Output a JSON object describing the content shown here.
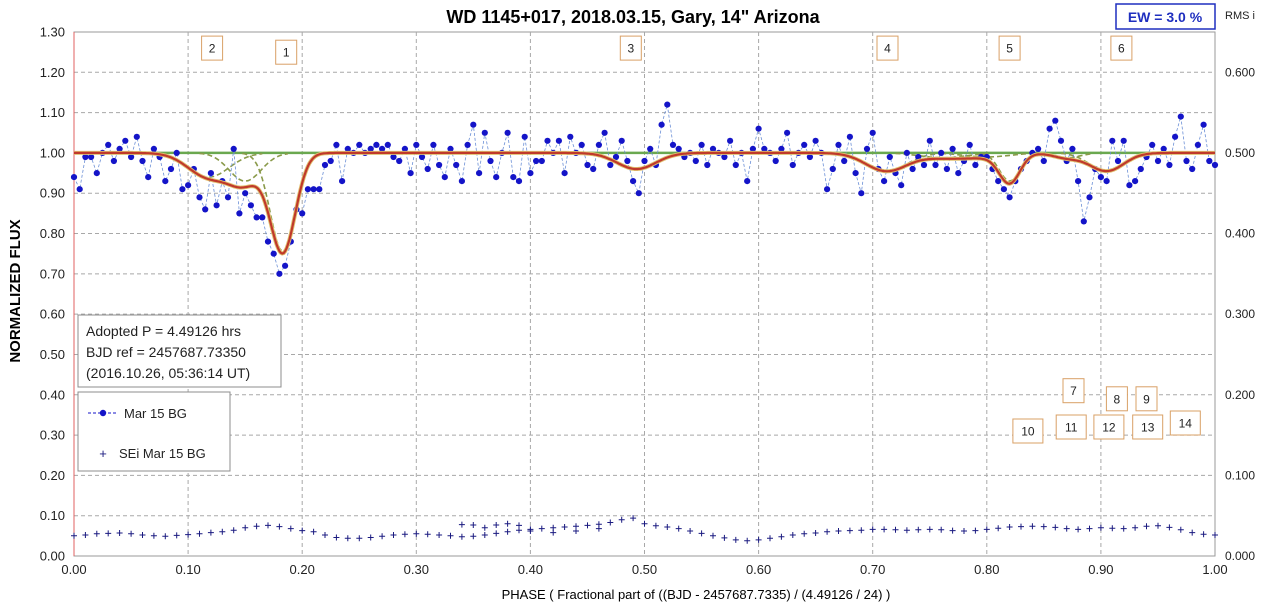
{
  "chart_data": {
    "type": "scatter",
    "title": "WD 1145+017, 2018.03.15, Gary,  14\" Arizona",
    "xlabel": "PHASE  ( Fractional part of ((BJD - 2457687.7335)  / (4.49126  / 24) )",
    "ylabel": "NORMALIZED  FLUX",
    "xlim": [
      0.0,
      1.0
    ],
    "ylim": [
      0.0,
      1.3
    ],
    "y2lim": [
      0.0,
      0.65
    ],
    "grid": true,
    "x_ticks": [
      "0.00",
      "0.10",
      "0.20",
      "0.30",
      "0.40",
      "0.50",
      "0.60",
      "0.70",
      "0.80",
      "0.90",
      "1.00"
    ],
    "y_ticks": [
      "0.00",
      "0.10",
      "0.20",
      "0.30",
      "0.40",
      "0.50",
      "0.60",
      "0.70",
      "0.80",
      "0.90",
      "1.00",
      "1.10",
      "1.20",
      "1.30"
    ],
    "y2_ticks": [
      "0.000",
      "0.100",
      "0.200",
      "0.300",
      "0.400",
      "0.500",
      "0.600"
    ],
    "y2_tick_values": [
      0.0,
      0.1,
      0.2,
      0.3,
      0.4,
      0.5,
      0.6
    ],
    "ew_label": "EW =  3.0 %",
    "rms_label": "RMS i",
    "info_lines": [
      "Adopted P = 4.49126 hrs",
      "BJD ref = 2457687.73350",
      "(2016.10.26, 05:36:14 UT)"
    ],
    "legend": {
      "series1": "Mar 15 BG",
      "series2": "SEi Mar 15 BG"
    },
    "colors": {
      "flux": "#1414c8",
      "sei": "#1a1a80",
      "model": "#c0392b",
      "components": "#8a9a4a",
      "baseline": "#6aa84f",
      "marker_box": "#d9a066"
    },
    "dip_markers": [
      {
        "label": "1",
        "x": 0.186,
        "y": 1.25
      },
      {
        "label": "2",
        "x": 0.121,
        "y": 1.26
      },
      {
        "label": "3",
        "x": 0.488,
        "y": 1.26
      },
      {
        "label": "4",
        "x": 0.713,
        "y": 1.26
      },
      {
        "label": "5",
        "x": 0.82,
        "y": 1.26
      },
      {
        "label": "6",
        "x": 0.918,
        "y": 1.26
      },
      {
        "label": "7",
        "x": 0.876,
        "y": 0.41
      },
      {
        "label": "8",
        "x": 0.914,
        "y": 0.39
      },
      {
        "label": "9",
        "x": 0.94,
        "y": 0.39
      },
      {
        "label": "10",
        "x": 0.836,
        "y": 0.31
      },
      {
        "label": "11",
        "x": 0.874,
        "y": 0.32
      },
      {
        "label": "12",
        "x": 0.907,
        "y": 0.32
      },
      {
        "label": "13",
        "x": 0.941,
        "y": 0.32
      },
      {
        "label": "14",
        "x": 0.974,
        "y": 0.33
      }
    ],
    "dips": [
      {
        "x0": 0.183,
        "depth": 0.245,
        "width": 0.011
      },
      {
        "x0": 0.118,
        "depth": 0.06,
        "width": 0.018
      },
      {
        "x0": 0.15,
        "depth": 0.07,
        "width": 0.014
      },
      {
        "x0": 0.493,
        "depth": 0.04,
        "width": 0.017
      },
      {
        "x0": 0.712,
        "depth": 0.045,
        "width": 0.018
      },
      {
        "x0": 0.762,
        "depth": 0.012,
        "width": 0.02
      },
      {
        "x0": 0.82,
        "depth": 0.07,
        "width": 0.009
      },
      {
        "x0": 0.8,
        "depth": 0.01,
        "width": 0.02
      },
      {
        "x0": 0.905,
        "depth": 0.045,
        "width": 0.015
      },
      {
        "x0": 0.87,
        "depth": 0.012,
        "width": 0.012
      }
    ],
    "flux_points": [
      [
        0.0,
        0.94
      ],
      [
        0.005,
        0.91
      ],
      [
        0.01,
        0.99
      ],
      [
        0.015,
        0.99
      ],
      [
        0.02,
        0.95
      ],
      [
        0.025,
        1.0
      ],
      [
        0.03,
        1.02
      ],
      [
        0.035,
        0.98
      ],
      [
        0.04,
        1.01
      ],
      [
        0.045,
        1.03
      ],
      [
        0.05,
        0.99
      ],
      [
        0.055,
        1.04
      ],
      [
        0.06,
        0.98
      ],
      [
        0.065,
        0.94
      ],
      [
        0.07,
        1.01
      ],
      [
        0.075,
        0.99
      ],
      [
        0.08,
        0.93
      ],
      [
        0.085,
        0.96
      ],
      [
        0.09,
        1.0
      ],
      [
        0.095,
        0.91
      ],
      [
        0.1,
        0.92
      ],
      [
        0.105,
        0.96
      ],
      [
        0.11,
        0.89
      ],
      [
        0.115,
        0.86
      ],
      [
        0.12,
        0.95
      ],
      [
        0.125,
        0.87
      ],
      [
        0.13,
        0.93
      ],
      [
        0.135,
        0.89
      ],
      [
        0.14,
        1.01
      ],
      [
        0.145,
        0.85
      ],
      [
        0.15,
        0.9
      ],
      [
        0.155,
        0.87
      ],
      [
        0.16,
        0.84
      ],
      [
        0.165,
        0.84
      ],
      [
        0.17,
        0.78
      ],
      [
        0.175,
        0.75
      ],
      [
        0.18,
        0.7
      ],
      [
        0.185,
        0.72
      ],
      [
        0.19,
        0.78
      ],
      [
        0.195,
        0.86
      ],
      [
        0.2,
        0.85
      ],
      [
        0.205,
        0.91
      ],
      [
        0.21,
        0.91
      ],
      [
        0.215,
        0.91
      ],
      [
        0.22,
        0.97
      ],
      [
        0.225,
        0.98
      ],
      [
        0.23,
        1.02
      ],
      [
        0.235,
        0.93
      ],
      [
        0.24,
        1.01
      ],
      [
        0.245,
        1.0
      ],
      [
        0.25,
        1.02
      ],
      [
        0.255,
        1.0
      ],
      [
        0.26,
        1.01
      ],
      [
        0.265,
        1.02
      ],
      [
        0.27,
        1.01
      ],
      [
        0.275,
        1.02
      ],
      [
        0.28,
        0.99
      ],
      [
        0.285,
        0.98
      ],
      [
        0.29,
        1.01
      ],
      [
        0.295,
        0.95
      ],
      [
        0.3,
        1.02
      ],
      [
        0.305,
        0.99
      ],
      [
        0.31,
        0.96
      ],
      [
        0.315,
        1.02
      ],
      [
        0.32,
        0.97
      ],
      [
        0.325,
        0.94
      ],
      [
        0.33,
        1.01
      ],
      [
        0.335,
        0.97
      ],
      [
        0.34,
        0.93
      ],
      [
        0.345,
        1.02
      ],
      [
        0.35,
        1.07
      ],
      [
        0.355,
        0.95
      ],
      [
        0.36,
        1.05
      ],
      [
        0.365,
        0.98
      ],
      [
        0.37,
        0.94
      ],
      [
        0.375,
        1.0
      ],
      [
        0.38,
        1.05
      ],
      [
        0.385,
        0.94
      ],
      [
        0.39,
        0.93
      ],
      [
        0.395,
        1.04
      ],
      [
        0.4,
        0.95
      ],
      [
        0.405,
        0.98
      ],
      [
        0.41,
        0.98
      ],
      [
        0.415,
        1.03
      ],
      [
        0.42,
        1.0
      ],
      [
        0.425,
        1.03
      ],
      [
        0.43,
        0.95
      ],
      [
        0.435,
        1.04
      ],
      [
        0.44,
        1.0
      ],
      [
        0.445,
        1.02
      ],
      [
        0.45,
        0.97
      ],
      [
        0.455,
        0.96
      ],
      [
        0.46,
        1.02
      ],
      [
        0.465,
        1.05
      ],
      [
        0.47,
        0.97
      ],
      [
        0.475,
        0.99
      ],
      [
        0.48,
        1.03
      ],
      [
        0.485,
        0.98
      ],
      [
        0.49,
        0.93
      ],
      [
        0.495,
        0.9
      ],
      [
        0.5,
        0.98
      ],
      [
        0.505,
        1.01
      ],
      [
        0.51,
        0.97
      ],
      [
        0.515,
        1.07
      ],
      [
        0.52,
        1.12
      ],
      [
        0.525,
        1.02
      ],
      [
        0.53,
        1.01
      ],
      [
        0.535,
        0.99
      ],
      [
        0.54,
        1.0
      ],
      [
        0.545,
        0.98
      ],
      [
        0.55,
        1.02
      ],
      [
        0.555,
        0.97
      ],
      [
        0.56,
        1.01
      ],
      [
        0.565,
        1.0
      ],
      [
        0.57,
        0.99
      ],
      [
        0.575,
        1.03
      ],
      [
        0.58,
        0.97
      ],
      [
        0.585,
        1.0
      ],
      [
        0.59,
        0.93
      ],
      [
        0.595,
        1.01
      ],
      [
        0.6,
        1.06
      ],
      [
        0.605,
        1.01
      ],
      [
        0.61,
        1.0
      ],
      [
        0.615,
        0.98
      ],
      [
        0.62,
        1.01
      ],
      [
        0.625,
        1.05
      ],
      [
        0.63,
        0.97
      ],
      [
        0.635,
        1.0
      ],
      [
        0.64,
        1.02
      ],
      [
        0.645,
        0.99
      ],
      [
        0.65,
        1.03
      ],
      [
        0.655,
        1.0
      ],
      [
        0.66,
        0.91
      ],
      [
        0.665,
        0.96
      ],
      [
        0.67,
        1.02
      ],
      [
        0.675,
        0.98
      ],
      [
        0.68,
        1.04
      ],
      [
        0.685,
        0.95
      ],
      [
        0.69,
        0.9
      ],
      [
        0.695,
        1.01
      ],
      [
        0.7,
        1.05
      ],
      [
        0.705,
        0.96
      ],
      [
        0.71,
        0.93
      ],
      [
        0.715,
        0.99
      ],
      [
        0.72,
        0.95
      ],
      [
        0.725,
        0.92
      ],
      [
        0.73,
        1.0
      ],
      [
        0.735,
        0.96
      ],
      [
        0.74,
        0.99
      ],
      [
        0.745,
        0.97
      ],
      [
        0.75,
        1.03
      ],
      [
        0.755,
        0.97
      ],
      [
        0.76,
        1.0
      ],
      [
        0.765,
        0.96
      ],
      [
        0.77,
        1.01
      ],
      [
        0.775,
        0.95
      ],
      [
        0.78,
        0.98
      ],
      [
        0.785,
        1.02
      ],
      [
        0.79,
        0.97
      ],
      [
        0.795,
        0.99
      ],
      [
        0.8,
        0.99
      ],
      [
        0.805,
        0.96
      ],
      [
        0.81,
        0.93
      ],
      [
        0.815,
        0.91
      ],
      [
        0.82,
        0.89
      ],
      [
        0.825,
        0.93
      ],
      [
        0.83,
        0.96
      ],
      [
        0.835,
        0.98
      ],
      [
        0.84,
        1.0
      ],
      [
        0.845,
        1.01
      ],
      [
        0.85,
        0.98
      ],
      [
        0.855,
        1.06
      ],
      [
        0.86,
        1.08
      ],
      [
        0.865,
        1.03
      ],
      [
        0.87,
        0.98
      ],
      [
        0.875,
        1.01
      ],
      [
        0.88,
        0.93
      ],
      [
        0.885,
        0.83
      ],
      [
        0.89,
        0.89
      ],
      [
        0.895,
        0.96
      ],
      [
        0.9,
        0.94
      ],
      [
        0.905,
        0.93
      ],
      [
        0.91,
        1.03
      ],
      [
        0.915,
        0.98
      ],
      [
        0.92,
        1.03
      ],
      [
        0.925,
        0.92
      ],
      [
        0.93,
        0.93
      ],
      [
        0.935,
        0.96
      ],
      [
        0.94,
        0.99
      ],
      [
        0.945,
        1.02
      ],
      [
        0.95,
        0.98
      ],
      [
        0.955,
        1.01
      ],
      [
        0.96,
        0.97
      ],
      [
        0.965,
        1.04
      ],
      [
        0.97,
        1.09
      ],
      [
        0.975,
        0.98
      ],
      [
        0.98,
        0.96
      ],
      [
        0.985,
        1.02
      ],
      [
        0.99,
        1.07
      ],
      [
        0.995,
        0.98
      ],
      [
        1.0,
        0.97
      ]
    ],
    "sei_points": [
      [
        0.0,
        0.05
      ],
      [
        0.01,
        0.052
      ],
      [
        0.02,
        0.055
      ],
      [
        0.03,
        0.056
      ],
      [
        0.04,
        0.057
      ],
      [
        0.05,
        0.055
      ],
      [
        0.06,
        0.052
      ],
      [
        0.07,
        0.05
      ],
      [
        0.08,
        0.049
      ],
      [
        0.09,
        0.051
      ],
      [
        0.1,
        0.053
      ],
      [
        0.11,
        0.055
      ],
      [
        0.12,
        0.058
      ],
      [
        0.13,
        0.06
      ],
      [
        0.14,
        0.064
      ],
      [
        0.15,
        0.07
      ],
      [
        0.16,
        0.074
      ],
      [
        0.17,
        0.076
      ],
      [
        0.18,
        0.073
      ],
      [
        0.19,
        0.068
      ],
      [
        0.2,
        0.063
      ],
      [
        0.21,
        0.06
      ],
      [
        0.22,
        0.052
      ],
      [
        0.23,
        0.046
      ],
      [
        0.24,
        0.044
      ],
      [
        0.25,
        0.044
      ],
      [
        0.26,
        0.046
      ],
      [
        0.27,
        0.049
      ],
      [
        0.28,
        0.052
      ],
      [
        0.29,
        0.054
      ],
      [
        0.3,
        0.055
      ],
      [
        0.31,
        0.054
      ],
      [
        0.32,
        0.052
      ],
      [
        0.33,
        0.05
      ],
      [
        0.34,
        0.048
      ],
      [
        0.35,
        0.049
      ],
      [
        0.36,
        0.052
      ],
      [
        0.37,
        0.056
      ],
      [
        0.38,
        0.06
      ],
      [
        0.39,
        0.064
      ],
      [
        0.4,
        0.066
      ],
      [
        0.41,
        0.068
      ],
      [
        0.42,
        0.07
      ],
      [
        0.43,
        0.072
      ],
      [
        0.44,
        0.074
      ],
      [
        0.45,
        0.076
      ],
      [
        0.46,
        0.079
      ],
      [
        0.47,
        0.083
      ],
      [
        0.48,
        0.09
      ],
      [
        0.49,
        0.094
      ],
      [
        0.5,
        0.08
      ],
      [
        0.51,
        0.075
      ],
      [
        0.52,
        0.072
      ],
      [
        0.53,
        0.068
      ],
      [
        0.54,
        0.062
      ],
      [
        0.55,
        0.056
      ],
      [
        0.56,
        0.05
      ],
      [
        0.57,
        0.045
      ],
      [
        0.58,
        0.04
      ],
      [
        0.59,
        0.038
      ],
      [
        0.6,
        0.04
      ],
      [
        0.61,
        0.044
      ],
      [
        0.62,
        0.048
      ],
      [
        0.63,
        0.052
      ],
      [
        0.64,
        0.055
      ],
      [
        0.65,
        0.057
      ],
      [
        0.66,
        0.06
      ],
      [
        0.67,
        0.062
      ],
      [
        0.68,
        0.063
      ],
      [
        0.69,
        0.064
      ],
      [
        0.7,
        0.066
      ],
      [
        0.71,
        0.066
      ],
      [
        0.72,
        0.065
      ],
      [
        0.73,
        0.064
      ],
      [
        0.74,
        0.065
      ],
      [
        0.75,
        0.066
      ],
      [
        0.76,
        0.065
      ],
      [
        0.77,
        0.063
      ],
      [
        0.78,
        0.062
      ],
      [
        0.79,
        0.063
      ],
      [
        0.8,
        0.066
      ],
      [
        0.81,
        0.069
      ],
      [
        0.82,
        0.072
      ],
      [
        0.83,
        0.073
      ],
      [
        0.84,
        0.074
      ],
      [
        0.85,
        0.073
      ],
      [
        0.86,
        0.071
      ],
      [
        0.87,
        0.068
      ],
      [
        0.88,
        0.066
      ],
      [
        0.89,
        0.068
      ],
      [
        0.9,
        0.07
      ],
      [
        0.91,
        0.069
      ],
      [
        0.92,
        0.068
      ],
      [
        0.93,
        0.07
      ],
      [
        0.94,
        0.074
      ],
      [
        0.95,
        0.075
      ],
      [
        0.96,
        0.071
      ],
      [
        0.97,
        0.065
      ],
      [
        0.98,
        0.058
      ],
      [
        0.99,
        0.054
      ],
      [
        1.0,
        0.052
      ],
      [
        0.34,
        0.078
      ],
      [
        0.35,
        0.077
      ],
      [
        0.36,
        0.07
      ],
      [
        0.37,
        0.077
      ],
      [
        0.38,
        0.08
      ],
      [
        0.39,
        0.076
      ],
      [
        0.4,
        0.062
      ],
      [
        0.42,
        0.058
      ],
      [
        0.44,
        0.062
      ],
      [
        0.46,
        0.068
      ]
    ]
  }
}
